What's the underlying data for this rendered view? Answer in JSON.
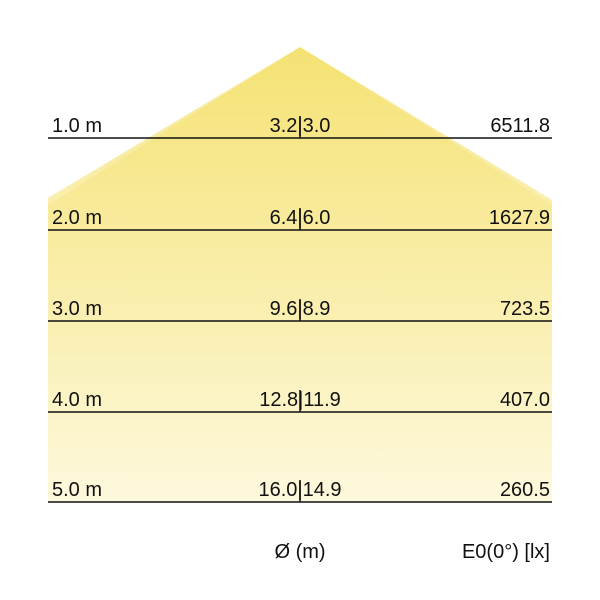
{
  "colors": {
    "cone_top": "#f4e06a",
    "cone_bottom": "#fdf8da",
    "line": "#111111"
  },
  "rows": [
    {
      "distance": "1.0 m",
      "diameter": "3.2|3.0",
      "illuminance": "6511.8"
    },
    {
      "distance": "2.0 m",
      "diameter": "6.4|6.0",
      "illuminance": "1627.9"
    },
    {
      "distance": "3.0 m",
      "diameter": "9.6|8.9",
      "illuminance": "723.5"
    },
    {
      "distance": "4.0 m",
      "diameter": "12.8|11.9",
      "illuminance": "407.0"
    },
    {
      "distance": "5.0 m",
      "diameter": "16.0|14.9",
      "illuminance": "260.5"
    }
  ],
  "footer": {
    "diameter_label": "Ø (m)",
    "illuminance_label": "E0(0°) [lx]"
  }
}
